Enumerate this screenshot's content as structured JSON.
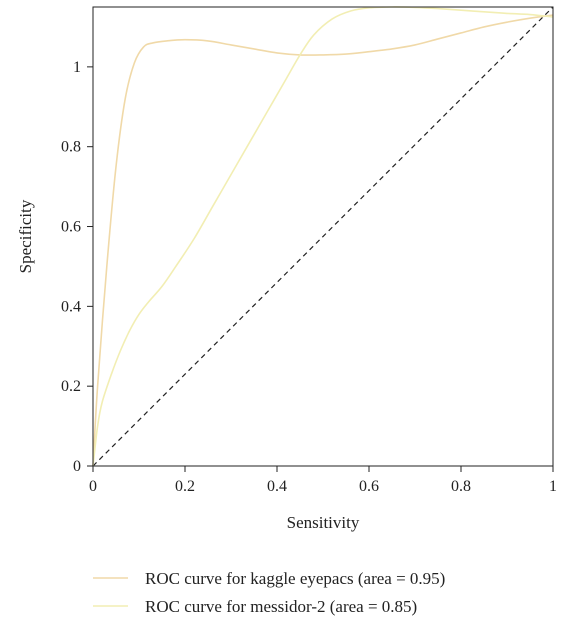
{
  "chart_data": {
    "type": "line",
    "title": "",
    "xlabel": "Sensitivity",
    "ylabel": "Specificity",
    "xlim": [
      0,
      1
    ],
    "ylim": [
      0,
      1.15
    ],
    "x_ticks": [
      0,
      0.2,
      0.4,
      0.6,
      0.8,
      1
    ],
    "x_tick_labels": [
      "0",
      "0.2",
      "0.4",
      "0.6",
      "0.8",
      "1"
    ],
    "y_ticks": [
      0,
      0.2,
      0.4,
      0.6,
      0.8,
      1
    ],
    "y_tick_labels": [
      "0",
      "0.2",
      "0.4",
      "0.6",
      "0.8",
      "1"
    ],
    "grid": false,
    "legend_position": "bottom",
    "series": [
      {
        "name": "ROC curve for kaggle eyepacs (area = 0.95)",
        "color": "#f0d9a8",
        "x": [
          0,
          0.01,
          0.03,
          0.05,
          0.07,
          0.09,
          0.11,
          0.13,
          0.16,
          0.2,
          0.25,
          0.3,
          0.35,
          0.4,
          0.45,
          0.5,
          0.55,
          0.6,
          0.65,
          0.7,
          0.75,
          0.8,
          0.85,
          0.9,
          0.95,
          1.0
        ],
        "y": [
          0.0,
          0.2,
          0.5,
          0.75,
          0.92,
          1.01,
          1.05,
          1.06,
          1.065,
          1.068,
          1.065,
          1.055,
          1.045,
          1.035,
          1.03,
          1.03,
          1.032,
          1.038,
          1.045,
          1.055,
          1.07,
          1.085,
          1.1,
          1.112,
          1.122,
          1.13
        ]
      },
      {
        "name": "ROC curve for messidor-2 (area = 0.85)",
        "color": "#f2eeb3",
        "x": [
          0,
          0.01,
          0.02,
          0.04,
          0.06,
          0.08,
          0.1,
          0.12,
          0.15,
          0.18,
          0.22,
          0.26,
          0.3,
          0.34,
          0.38,
          0.42,
          0.45,
          0.48,
          0.52,
          0.56,
          0.6,
          0.65,
          0.7,
          0.75,
          0.8,
          0.85,
          0.9,
          0.95,
          1.0
        ],
        "y": [
          0.0,
          0.1,
          0.16,
          0.23,
          0.29,
          0.34,
          0.38,
          0.41,
          0.45,
          0.5,
          0.57,
          0.65,
          0.73,
          0.81,
          0.89,
          0.97,
          1.03,
          1.08,
          1.12,
          1.14,
          1.148,
          1.15,
          1.149,
          1.146,
          1.142,
          1.138,
          1.134,
          1.131,
          1.125
        ]
      }
    ],
    "reference_line": {
      "x": [
        0,
        1
      ],
      "y": [
        0,
        1.15
      ],
      "color": "#222222",
      "style": "dashed"
    }
  }
}
